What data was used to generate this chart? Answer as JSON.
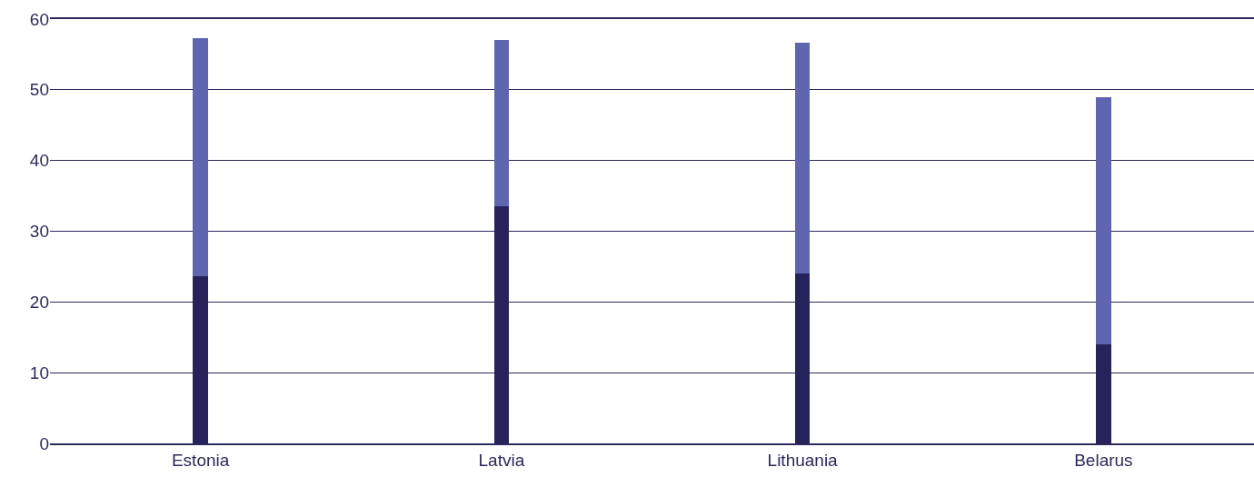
{
  "chart_data": {
    "type": "bar",
    "stacked": true,
    "categories": [
      "Estonia",
      "Latvia",
      "Lithuania",
      "Belarus"
    ],
    "series": [
      {
        "color": "#25235a",
        "values": [
          23.6,
          33.5,
          24.0,
          14.0
        ]
      },
      {
        "color": "#5f66b0",
        "values": [
          33.7,
          23.5,
          32.7,
          35.0
        ]
      }
    ],
    "ylim": [
      0,
      60
    ],
    "yticks": [
      0,
      10,
      20,
      30,
      40,
      50,
      60
    ],
    "grid": "y"
  }
}
